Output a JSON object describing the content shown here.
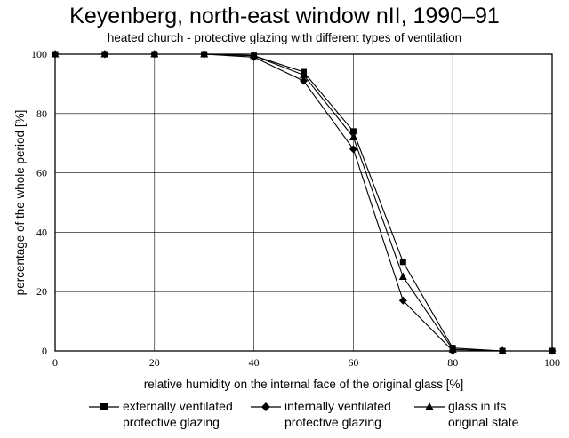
{
  "chart_data": {
    "type": "line",
    "title": "Keyenberg, north-east window nII, 1990–91",
    "subtitle": "heated church - protective glazing with different types of ventilation",
    "xlabel": "relative humidity on the internal face of the original glass [%]",
    "ylabel": "percentage of the whole period [%]",
    "xlim": [
      0,
      100
    ],
    "ylim": [
      0,
      100
    ],
    "xticks": [
      "0",
      "20",
      "40",
      "60",
      "80",
      "100"
    ],
    "yticks": [
      "0",
      "20",
      "40",
      "60",
      "80",
      "100"
    ],
    "grid": true,
    "legend_position": "bottom",
    "series": [
      {
        "name": "externally ventilated protective glazing",
        "marker": "square",
        "x": [
          0,
          10,
          20,
          30,
          40,
          50,
          60,
          70,
          80,
          90,
          100
        ],
        "y": [
          100,
          100,
          100,
          100,
          99.5,
          94,
          74,
          30,
          1,
          0,
          0
        ]
      },
      {
        "name": "internally ventilated protective glazing",
        "marker": "diamond",
        "x": [
          0,
          10,
          20,
          30,
          40,
          50,
          60,
          70,
          80,
          90,
          100
        ],
        "y": [
          100,
          100,
          100,
          100,
          99,
          91,
          68,
          17,
          0,
          0,
          0
        ]
      },
      {
        "name": "glass in its original state",
        "marker": "triangle",
        "x": [
          0,
          10,
          20,
          30,
          40,
          50,
          60,
          70,
          80,
          90,
          100
        ],
        "y": [
          100,
          100,
          100,
          100,
          99.5,
          93,
          72,
          25,
          0.5,
          0,
          0
        ]
      }
    ]
  },
  "legend": {
    "items": [
      {
        "line1": "externally ventilated",
        "line2": "protective glazing"
      },
      {
        "line1": "internally ventilated",
        "line2": "protective glazing"
      },
      {
        "line1": "glass in its",
        "line2": "original state"
      }
    ]
  }
}
